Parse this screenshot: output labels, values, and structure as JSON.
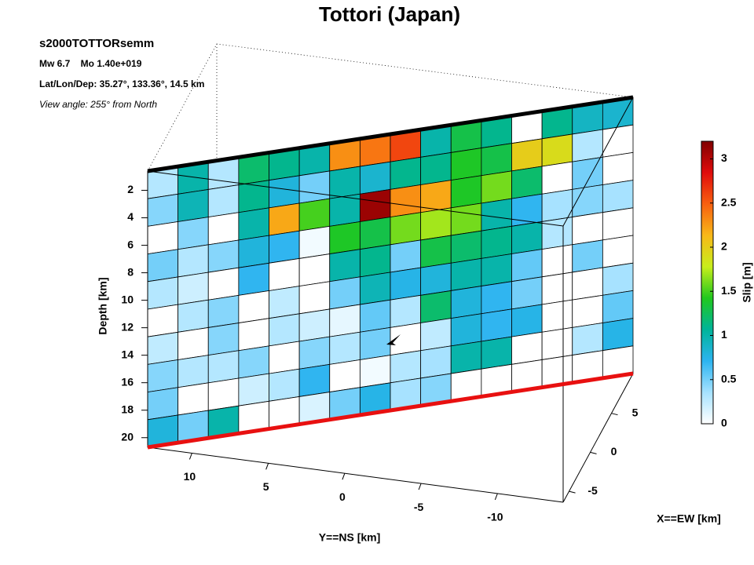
{
  "chart_data": {
    "type": "fault-slip",
    "title": "Tottori (Japan)",
    "event": "s2000TOTTORsemm",
    "magnitude": "Mw 6.7    Mo 1.40e+019",
    "location": "Lat/Lon/Dep: 35.27°, 133.36°, 14.5 km",
    "view": "View angle: 255° from North",
    "zlabel": "Depth [km]",
    "ylabel": "Y==NS [km]",
    "xlabel": "X==EW [km]",
    "colorbar_label": "Slip [m]",
    "zlim": [
      0.6,
      20.7
    ],
    "zticks": [
      2,
      4,
      6,
      8,
      10,
      12,
      14,
      16,
      18,
      20
    ],
    "ylim": [
      -14.3,
      12.9
    ],
    "yticks": [
      10,
      5,
      0,
      -5,
      -10
    ],
    "xlim": [
      -6.4,
      10.1
    ],
    "xticks": [
      5,
      0,
      -5
    ],
    "clim": [
      0,
      3.2
    ],
    "cticks": [
      0,
      0.5,
      1,
      1.5,
      2,
      2.5,
      3
    ],
    "colormap": [
      "#ffffff",
      "#a6e2ff",
      "#2cb4f0",
      "#00b49a",
      "#20c81e",
      "#c8ee1c",
      "#f8b818",
      "#f86010",
      "#e00c0c",
      "#800000"
    ],
    "slip": [
      [
        0.3,
        1.0,
        0.3,
        1.2,
        1.1,
        1.0,
        2.3,
        2.4,
        2.6,
        1.0,
        1.3,
        1.1,
        0,
        1.1,
        0.9,
        0.85
      ],
      [
        0.45,
        0.95,
        0.3,
        1.1,
        0.8,
        0.5,
        1.0,
        0.85,
        1.1,
        1.1,
        1.4,
        1.3,
        2.0,
        1.9,
        0.3,
        0
      ],
      [
        0,
        0.45,
        0,
        1.0,
        2.2,
        1.5,
        1.0,
        3.1,
        2.3,
        2.2,
        1.4,
        1.6,
        1.2,
        0,
        0.5,
        0
      ],
      [
        0.5,
        0.3,
        0.45,
        0.8,
        0.7,
        0.05,
        1.4,
        1.3,
        1.6,
        1.7,
        1.6,
        1.0,
        0.7,
        0.35,
        0.45,
        0.35
      ],
      [
        0.3,
        0.2,
        0,
        0.7,
        0,
        0,
        1.0,
        1.1,
        0.5,
        1.3,
        1.2,
        1.1,
        1.0,
        0.3,
        0,
        0
      ],
      [
        0,
        0.3,
        0.45,
        0,
        0.25,
        0,
        0.5,
        0.95,
        0.75,
        0.8,
        1.0,
        1.0,
        0.55,
        0,
        0.5,
        0
      ],
      [
        0.25,
        0,
        0.45,
        0,
        0.3,
        0.2,
        0.1,
        0.55,
        0.3,
        1.2,
        0.8,
        0.7,
        0.5,
        0,
        0,
        0.35
      ],
      [
        0.45,
        0.3,
        0.3,
        0.45,
        0,
        0.45,
        0.3,
        0.5,
        0,
        0.25,
        0.8,
        0.7,
        0.75,
        0,
        0,
        0.55
      ],
      [
        0.5,
        0,
        0,
        0.2,
        0.3,
        0.7,
        0,
        0.05,
        0.3,
        0.35,
        1.0,
        1.0,
        0,
        0,
        0.3,
        0.75
      ],
      [
        0.8,
        0.5,
        1.0,
        0,
        0,
        0.15,
        0.5,
        0.75,
        0.35,
        0.45,
        0,
        0,
        0,
        0,
        0,
        0
      ]
    ]
  }
}
